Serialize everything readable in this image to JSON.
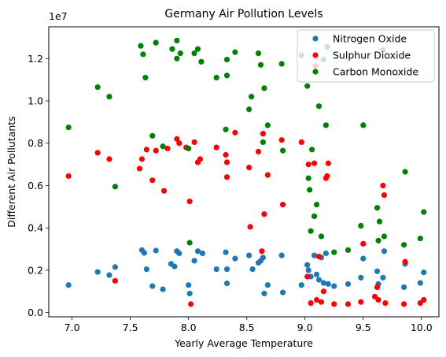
{
  "chart_data": {
    "type": "scatter",
    "title": "Germany Air Pollution Levels",
    "xlabel": "Yearly Average Temperature",
    "ylabel": "Different Air Pollutants",
    "offset_text": "1e7",
    "xlim": [
      6.8,
      10.15
    ],
    "ylim": [
      -200000,
      13500000
    ],
    "x_ticks": [
      7.0,
      7.5,
      8.0,
      8.5,
      9.0,
      9.5,
      10.0
    ],
    "x_tick_labels": [
      "7.0",
      "7.5",
      "8.0",
      "8.5",
      "9.0",
      "9.5",
      "10.0"
    ],
    "y_ticks": [
      0,
      2000000,
      4000000,
      6000000,
      8000000,
      10000000,
      12000000
    ],
    "y_tick_labels": [
      "0.0",
      "0.2",
      "0.4",
      "0.6",
      "0.8",
      "1.0",
      "1.2"
    ],
    "grid": false,
    "legend_position": "top-right",
    "series": [
      {
        "name": "Nitrogen Oxide",
        "color": "#1f77b4",
        "points": [
          [
            6.97,
            1300000
          ],
          [
            7.22,
            1920000
          ],
          [
            7.32,
            1770000
          ],
          [
            7.37,
            2150000
          ],
          [
            7.6,
            2950000
          ],
          [
            7.62,
            2820000
          ],
          [
            7.64,
            2050000
          ],
          [
            7.69,
            1250000
          ],
          [
            7.72,
            2930000
          ],
          [
            7.78,
            1100000
          ],
          [
            7.85,
            2300000
          ],
          [
            7.88,
            2180000
          ],
          [
            7.9,
            2900000
          ],
          [
            7.92,
            2800000
          ],
          [
            8.0,
            1300000
          ],
          [
            8.01,
            900000
          ],
          [
            8.05,
            2450000
          ],
          [
            8.08,
            2900000
          ],
          [
            8.12,
            2800000
          ],
          [
            8.24,
            2050000
          ],
          [
            8.32,
            2850000
          ],
          [
            8.33,
            1380000
          ],
          [
            8.33,
            2050000
          ],
          [
            8.4,
            2550000
          ],
          [
            8.52,
            2700000
          ],
          [
            8.55,
            2050000
          ],
          [
            8.6,
            2350000
          ],
          [
            8.62,
            2450000
          ],
          [
            8.64,
            2600000
          ],
          [
            8.65,
            900000
          ],
          [
            8.68,
            1300000
          ],
          [
            8.8,
            2700000
          ],
          [
            8.81,
            950000
          ],
          [
            8.97,
            1300000
          ],
          [
            9.02,
            2250000
          ],
          [
            9.03,
            2000000
          ],
          [
            9.05,
            1700000
          ],
          [
            9.08,
            2700000
          ],
          [
            9.1,
            1800000
          ],
          [
            9.12,
            1550000
          ],
          [
            9.14,
            2600000
          ],
          [
            9.16,
            1400000
          ],
          [
            9.18,
            2800000
          ],
          [
            9.2,
            1350000
          ],
          [
            9.25,
            1250000
          ],
          [
            9.37,
            1350000
          ],
          [
            9.48,
            1650000
          ],
          [
            9.5,
            2550000
          ],
          [
            9.62,
            1950000
          ],
          [
            9.63,
            1350000
          ],
          [
            9.67,
            1650000
          ],
          [
            9.68,
            2900000
          ],
          [
            9.85,
            1200000
          ],
          [
            9.86,
            2300000
          ],
          [
            9.99,
            1400000
          ],
          [
            10.02,
            1900000
          ]
        ]
      },
      {
        "name": "Sulphur Dioxide",
        "color": "#ff0000",
        "points": [
          [
            6.97,
            6450000
          ],
          [
            7.22,
            7550000
          ],
          [
            7.32,
            7250000
          ],
          [
            7.37,
            1500000
          ],
          [
            7.58,
            6800000
          ],
          [
            7.6,
            7250000
          ],
          [
            7.64,
            7700000
          ],
          [
            7.69,
            6250000
          ],
          [
            7.72,
            7650000
          ],
          [
            7.79,
            5750000
          ],
          [
            7.82,
            7750000
          ],
          [
            7.9,
            8200000
          ],
          [
            7.92,
            8000000
          ],
          [
            7.98,
            7800000
          ],
          [
            8.01,
            5250000
          ],
          [
            8.02,
            400000
          ],
          [
            8.05,
            8050000
          ],
          [
            8.08,
            7100000
          ],
          [
            8.1,
            7250000
          ],
          [
            8.24,
            7800000
          ],
          [
            8.32,
            7450000
          ],
          [
            8.33,
            6400000
          ],
          [
            8.33,
            7100000
          ],
          [
            8.4,
            8500000
          ],
          [
            8.52,
            6850000
          ],
          [
            8.53,
            4050000
          ],
          [
            8.6,
            7600000
          ],
          [
            8.63,
            2900000
          ],
          [
            8.64,
            8450000
          ],
          [
            8.65,
            4650000
          ],
          [
            8.68,
            6500000
          ],
          [
            8.8,
            8150000
          ],
          [
            8.81,
            5100000
          ],
          [
            8.97,
            8050000
          ],
          [
            9.02,
            1700000
          ],
          [
            9.03,
            7000000
          ],
          [
            9.05,
            450000
          ],
          [
            9.08,
            7050000
          ],
          [
            9.09,
            11650000
          ],
          [
            9.1,
            600000
          ],
          [
            9.12,
            2650000
          ],
          [
            9.14,
            500000
          ],
          [
            9.16,
            1000000
          ],
          [
            9.18,
            6350000
          ],
          [
            9.19,
            6450000
          ],
          [
            9.2,
            7050000
          ],
          [
            9.25,
            400000
          ],
          [
            9.37,
            400000
          ],
          [
            9.48,
            500000
          ],
          [
            9.5,
            3250000
          ],
          [
            9.6,
            750000
          ],
          [
            9.62,
            1200000
          ],
          [
            9.63,
            600000
          ],
          [
            9.67,
            6000000
          ],
          [
            9.68,
            5550000
          ],
          [
            9.69,
            450000
          ],
          [
            9.85,
            400000
          ],
          [
            9.86,
            2400000
          ],
          [
            9.99,
            450000
          ],
          [
            10.02,
            600000
          ]
        ]
      },
      {
        "name": "Carbon Monoxide",
        "color": "#008000",
        "points": [
          [
            6.97,
            8750000
          ],
          [
            7.22,
            10650000
          ],
          [
            7.32,
            10200000
          ],
          [
            7.37,
            5950000
          ],
          [
            7.59,
            12600000
          ],
          [
            7.61,
            12200000
          ],
          [
            7.63,
            11100000
          ],
          [
            7.69,
            8350000
          ],
          [
            7.72,
            12750000
          ],
          [
            7.78,
            7850000
          ],
          [
            7.86,
            12450000
          ],
          [
            7.9,
            12850000
          ],
          [
            7.9,
            12000000
          ],
          [
            7.93,
            12250000
          ],
          [
            8.0,
            7750000
          ],
          [
            8.01,
            3300000
          ],
          [
            8.05,
            12250000
          ],
          [
            8.08,
            12450000
          ],
          [
            8.11,
            11850000
          ],
          [
            8.24,
            11100000
          ],
          [
            8.32,
            8650000
          ],
          [
            8.33,
            11200000
          ],
          [
            8.33,
            11950000
          ],
          [
            8.4,
            12300000
          ],
          [
            8.52,
            9600000
          ],
          [
            8.54,
            10200000
          ],
          [
            8.6,
            12250000
          ],
          [
            8.62,
            11700000
          ],
          [
            8.64,
            8050000
          ],
          [
            8.65,
            10600000
          ],
          [
            8.68,
            8850000
          ],
          [
            8.8,
            11750000
          ],
          [
            8.81,
            7650000
          ],
          [
            8.97,
            12150000
          ],
          [
            9.02,
            10700000
          ],
          [
            9.03,
            6350000
          ],
          [
            9.04,
            5800000
          ],
          [
            9.05,
            3850000
          ],
          [
            9.06,
            7700000
          ],
          [
            9.08,
            4550000
          ],
          [
            9.1,
            5100000
          ],
          [
            9.12,
            9750000
          ],
          [
            9.14,
            3600000
          ],
          [
            9.16,
            11950000
          ],
          [
            9.18,
            8850000
          ],
          [
            9.19,
            12550000
          ],
          [
            9.25,
            2850000
          ],
          [
            9.37,
            2950000
          ],
          [
            9.48,
            4100000
          ],
          [
            9.5,
            8850000
          ],
          [
            9.62,
            4950000
          ],
          [
            9.63,
            3400000
          ],
          [
            9.64,
            4300000
          ],
          [
            9.67,
            12400000
          ],
          [
            9.68,
            3600000
          ],
          [
            9.85,
            3200000
          ],
          [
            9.86,
            6650000
          ],
          [
            9.99,
            3500000
          ],
          [
            10.02,
            4750000
          ]
        ]
      }
    ]
  }
}
